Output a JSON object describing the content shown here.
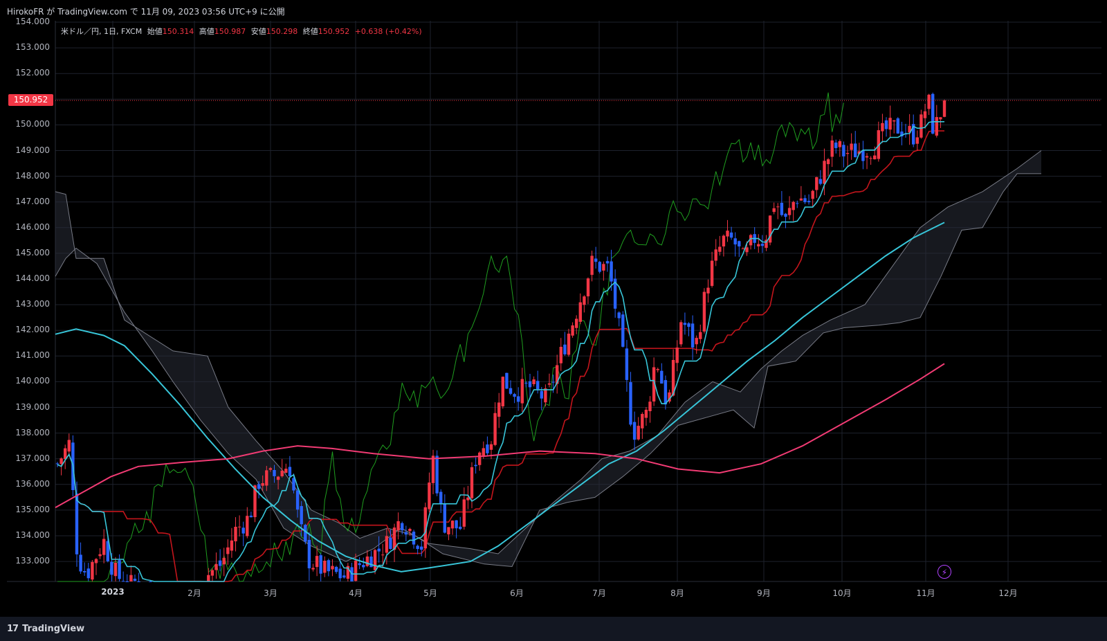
{
  "header": {
    "publish_text": "HirokoFR が TradingView.com で 11月 09, 2023 03:56 UTC+9 に公開"
  },
  "legend": {
    "symbol": "米ドル／円, 1日, FXCM",
    "open_label": "始値",
    "open": "150.314",
    "high_label": "高値",
    "high": "150.987",
    "low_label": "安値",
    "low": "150.298",
    "close_label": "終値",
    "close": "150.952",
    "change": "+0.638 (+0.42%)"
  },
  "last_price_badge": "150.952",
  "footer": {
    "brand": "TradingView"
  },
  "colors": {
    "background": "#131722",
    "up_candle": "#f23645",
    "down_candle": "#2962ff",
    "tenkan": "#38c6d9",
    "kijun": "#c4151c",
    "chikou": "#1f9e1f",
    "ma_long": "#f23b74",
    "ma_mid": "#38c6d9",
    "cloud_edge": "#787b86",
    "cloud_fill": "#2a2e39"
  },
  "chart_data": {
    "type": "candlestick",
    "y_ticks": [
      "154.000",
      "153.000",
      "152.000",
      "151.000",
      "150.000",
      "149.000",
      "148.000",
      "147.000",
      "146.000",
      "145.000",
      "144.000",
      "143.000",
      "142.000",
      "141.000",
      "140.000",
      "139.000",
      "138.000",
      "137.000",
      "136.000",
      "135.000",
      "134.000",
      "133.000"
    ],
    "x_ticks": [
      {
        "label": "2023",
        "year": true
      },
      {
        "label": "2月"
      },
      {
        "label": "3月"
      },
      {
        "label": "4月"
      },
      {
        "label": "5月"
      },
      {
        "label": "6月"
      },
      {
        "label": "7月"
      },
      {
        "label": "8月"
      },
      {
        "label": "9月"
      },
      {
        "label": "10月"
      },
      {
        "label": "11月"
      },
      {
        "label": "12月"
      }
    ],
    "ylim": [
      132.2,
      154.0
    ],
    "last_price": 150.952,
    "key_closes": [
      {
        "month": "2023-01",
        "price": 131.5
      },
      {
        "month": "2023-02",
        "price": 136.2
      },
      {
        "month": "2023-03",
        "price": 132.8
      },
      {
        "month": "2023-04",
        "price": 136.3
      },
      {
        "month": "2023-05",
        "price": 139.3
      },
      {
        "month": "2023-06",
        "price": 144.3
      },
      {
        "month": "2023-07",
        "price": 142.3
      },
      {
        "month": "2023-08",
        "price": 145.5
      },
      {
        "month": "2023-09",
        "price": 149.3
      },
      {
        "month": "2023-10",
        "price": 151.5
      },
      {
        "month": "2023-11",
        "price": 150.95
      }
    ]
  }
}
